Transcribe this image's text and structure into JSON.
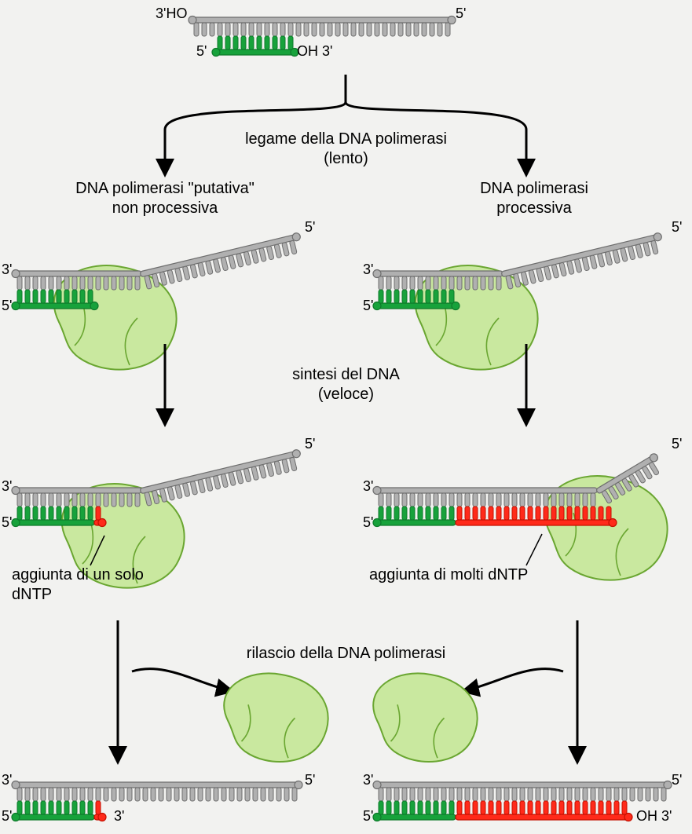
{
  "colors": {
    "bg": "#f2f2f0",
    "template_fill": "#b0b0b0",
    "template_stroke": "#6e6e6e",
    "primer_fill": "#17a23b",
    "primer_fill_light": "#5fbe74",
    "primer_stroke": "#0e7a2b",
    "new_fill": "#ff2a1a",
    "new_stroke": "#c41000",
    "enzyme_fill": "#c9e89f",
    "enzyme_stroke": "#6aa631",
    "arrow": "#000000",
    "text": "#000000"
  },
  "labels": {
    "top_3HO": "3'HO",
    "top_5r": "5'",
    "top_5l": "5'",
    "top_OH3": "OH 3'",
    "step1a": "legame della DNA polimerasi",
    "step1b": "(lento)",
    "left_title1": "DNA polimerasi \"putativa\"",
    "left_title2": "non processiva",
    "right_title1": "DNA polimerasi",
    "right_title2": "processiva",
    "step2a": "sintesi del DNA",
    "step2b": "(veloce)",
    "left_note": "aggiunta di un solo\ndNTP",
    "right_note": "aggiunta di molti dNTP",
    "step3": "rilascio della DNA polimerasi",
    "end3": "3'",
    "end5": "5'",
    "end_OH3": "OH 3'"
  },
  "strand": {
    "tooth_h": 17,
    "tooth_w": 6,
    "tooth_gap": 4,
    "backbone_h": 7
  }
}
